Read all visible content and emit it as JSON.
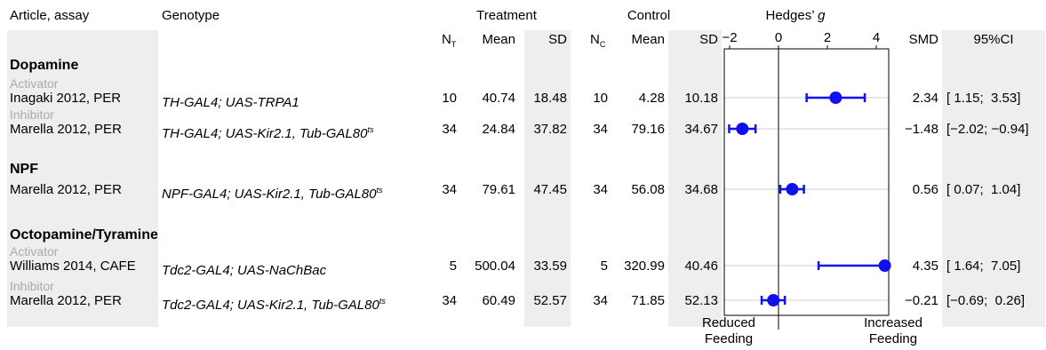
{
  "headers": {
    "article": "Article, assay",
    "genotype": "Genotype",
    "treatment": "Treatment",
    "control": "Control",
    "hedges_prefix": "Hedges’ ",
    "hedges_g": "g",
    "n_t_main": "N",
    "n_t_sub": "T",
    "n_c_main": "N",
    "n_c_sub": "C",
    "mean": "Mean",
    "sd": "SD",
    "smd": "SMD",
    "ci": "95%CI"
  },
  "groups": [
    {
      "name": "Dopamine"
    },
    {
      "name": "NPF"
    },
    {
      "name": "Octopamine/Tyramine"
    }
  ],
  "rows": [
    {
      "subtitle": "Activator",
      "article": "Inagaki 2012, PER",
      "genotype": "TH-GAL4; UAS-TRPA1",
      "genotype_sup": "",
      "nt": "10",
      "mean_t": "40.74",
      "sd_t": "18.48",
      "nc": "10",
      "mean_c": "4.28",
      "sd_c": "10.18",
      "smd": "2.34",
      "ci": "[ 1.15;  3.53]"
    },
    {
      "subtitle": "Inhibitor",
      "article": "Marella 2012, PER",
      "genotype": "TH-GAL4; UAS-Kir2.1, Tub-GAL80",
      "genotype_sup": "ts",
      "nt": "34",
      "mean_t": "24.84",
      "sd_t": "37.82",
      "nc": "34",
      "mean_c": "79.16",
      "sd_c": "34.67",
      "smd": "−1.48",
      "ci": "[−2.02; −0.94]"
    },
    {
      "subtitle": "",
      "article": "Marella 2012, PER",
      "genotype": "NPF-GAL4; UAS-Kir2.1, Tub-GAL80",
      "genotype_sup": "ts",
      "nt": "34",
      "mean_t": "79.61",
      "sd_t": "47.45",
      "nc": "34",
      "mean_c": "56.08",
      "sd_c": "34.68",
      "smd": "0.56",
      "ci": "[ 0.07;  1.04]"
    },
    {
      "subtitle": "Activator",
      "article": "Williams 2014, CAFE",
      "genotype": "Tdc2-GAL4; UAS-NaChBac",
      "genotype_sup": "",
      "nt": "5",
      "mean_t": "500.04",
      "sd_t": "33.59",
      "nc": "5",
      "mean_c": "320.99",
      "sd_c": "40.46",
      "smd": "4.35",
      "ci": "[ 1.64;  7.05]"
    },
    {
      "subtitle": "Inhibitor",
      "article": "Marella 2012, PER",
      "genotype": "Tdc2-GAL4; UAS-Kir2.1, Tub-GAL80",
      "genotype_sup": "ts",
      "nt": "34",
      "mean_t": "60.49",
      "sd_t": "52.57",
      "nc": "34",
      "mean_c": "71.85",
      "sd_c": "52.13",
      "smd": "−0.21",
      "ci": "[−0.69;  0.26]"
    }
  ],
  "footer": {
    "left_line1": "Reduced",
    "left_line2": "Feeding",
    "right_line1": "Increased",
    "right_line2": "Feeding"
  },
  "colors": {
    "point": "#1010ee",
    "band": "#eeeeee",
    "subtitle": "#aaaaaa"
  },
  "chart_data": {
    "type": "scatter",
    "subtype": "forest-plot",
    "x_axis": {
      "ticks": [
        -2,
        0,
        2,
        4
      ],
      "tick_labels": [
        "−2",
        "0",
        "2",
        "4"
      ],
      "range": [
        -2.2,
        4.6
      ],
      "label": "Hedges’ g"
    },
    "points": [
      {
        "label": "Inagaki 2012, PER",
        "smd": 2.34,
        "ci_low": 1.15,
        "ci_high": 3.53
      },
      {
        "label": "Marella 2012, PER",
        "smd": -1.48,
        "ci_low": -2.02,
        "ci_high": -0.94
      },
      {
        "label": "Marella 2012, PER",
        "smd": 0.56,
        "ci_low": 0.07,
        "ci_high": 1.04
      },
      {
        "label": "Williams 2014, CAFE",
        "smd": 4.35,
        "ci_low": 1.64,
        "ci_high": 7.05
      },
      {
        "label": "Marella 2012, PER",
        "smd": -0.21,
        "ci_low": -0.69,
        "ci_high": 0.26
      }
    ]
  }
}
